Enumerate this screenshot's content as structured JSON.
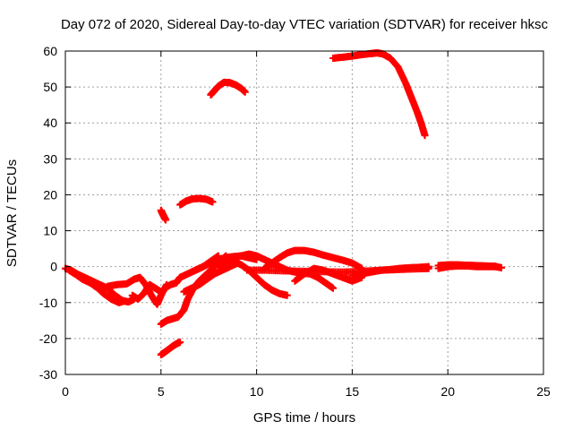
{
  "chart_data": {
    "type": "scatter",
    "title": "Day 072 of 2020, Sidereal Day-to-day VTEC variation (SDTVAR) for receiver hksc",
    "xlabel": "GPS time / hours",
    "ylabel": "SDTVAR / TECUs",
    "xlim": [
      0,
      25
    ],
    "ylim": [
      -30,
      60
    ],
    "xticks": [
      0,
      5,
      10,
      15,
      20,
      25
    ],
    "yticks": [
      -30,
      -20,
      -10,
      0,
      10,
      20,
      30,
      40,
      50,
      60
    ],
    "grid": true,
    "marker": "+",
    "series_color": "#ff0000",
    "series": [
      {
        "name": "seg-high-arc",
        "x": [
          14.0,
          14.5,
          15.0,
          15.5,
          16.0,
          16.3,
          16.6,
          17.0,
          17.4,
          17.8,
          18.1,
          18.4,
          18.6,
          18.8
        ],
        "y": [
          58.0,
          58.3,
          58.6,
          59.0,
          59.3,
          59.5,
          59.2,
          58.0,
          55.5,
          51.0,
          47.0,
          43.0,
          40.0,
          36.5
        ]
      },
      {
        "name": "seg-50",
        "x": [
          7.6,
          7.8,
          8.0,
          8.3,
          8.6,
          8.9,
          9.2,
          9.4
        ],
        "y": [
          47.8,
          49.0,
          50.2,
          51.3,
          51.2,
          50.6,
          49.6,
          48.6
        ]
      },
      {
        "name": "seg-18",
        "x": [
          6.0,
          6.3,
          6.6,
          7.0,
          7.4,
          7.7
        ],
        "y": [
          17.2,
          18.2,
          18.8,
          19.0,
          18.7,
          18.0
        ]
      },
      {
        "name": "seg-15",
        "x": [
          5.0,
          5.1,
          5.25
        ],
        "y": [
          15.7,
          14.5,
          13.0
        ]
      },
      {
        "name": "seg-minus-22",
        "x": [
          5.0,
          5.2,
          5.4,
          5.6,
          5.8,
          6.0
        ],
        "y": [
          -24.5,
          -23.8,
          -23.0,
          -22.2,
          -21.5,
          -21.0
        ]
      },
      {
        "name": "seg-rise",
        "x": [
          5.0,
          5.3,
          5.6,
          5.9,
          6.2,
          6.4,
          6.7,
          7.0,
          7.3,
          7.6,
          8.0,
          8.4
        ],
        "y": [
          -16.0,
          -15.0,
          -14.5,
          -14.0,
          -12.0,
          -9.0,
          -6.0,
          -4.0,
          -2.5,
          -1.0,
          1.0,
          3.0
        ]
      },
      {
        "name": "seg-early",
        "x": [
          0.0,
          0.3,
          0.6,
          1.0,
          1.4,
          1.8,
          2.2,
          2.6,
          3.0,
          3.3,
          3.6
        ],
        "y": [
          -0.5,
          -1.0,
          -2.0,
          -3.0,
          -4.0,
          -5.0,
          -6.0,
          -8.0,
          -9.5,
          -9.8,
          -9.0
        ]
      },
      {
        "name": "seg-early-b",
        "x": [
          0.2,
          0.5,
          0.9,
          1.3,
          1.7,
          2.0,
          2.4,
          2.8,
          3.1
        ],
        "y": [
          -1.0,
          -2.0,
          -3.5,
          -4.5,
          -6.0,
          -7.5,
          -9.0,
          -10.0,
          -9.5
        ]
      },
      {
        "name": "seg-wiggle",
        "x": [
          2.2,
          2.7,
          3.2,
          3.6,
          3.9,
          4.2,
          4.5,
          4.8,
          5.0,
          5.3
        ],
        "y": [
          -5.5,
          -5.0,
          -4.8,
          -3.5,
          -3.0,
          -5.0,
          -8.0,
          -10.5,
          -8.0,
          -5.0
        ]
      },
      {
        "name": "seg-wiggle-b",
        "x": [
          3.5,
          3.8,
          4.1,
          4.4,
          4.7,
          5.0
        ],
        "y": [
          -8.0,
          -9.0,
          -7.5,
          -5.0,
          -6.0,
          -7.0
        ]
      },
      {
        "name": "seg-mid-a",
        "x": [
          5.2,
          5.5,
          5.8,
          6.0,
          6.4,
          6.8,
          7.2,
          7.6,
          8.0
        ],
        "y": [
          -6.0,
          -5.0,
          -4.5,
          -3.0,
          -2.0,
          -1.0,
          0.0,
          1.5,
          3.0
        ]
      },
      {
        "name": "seg-mid-b",
        "x": [
          6.2,
          6.6,
          7.0,
          7.4,
          7.8,
          8.2,
          8.6,
          9.0
        ],
        "y": [
          -7.0,
          -6.0,
          -5.0,
          -3.5,
          -2.0,
          -1.0,
          0.0,
          1.0
        ]
      },
      {
        "name": "seg-mid-c",
        "x": [
          6.8,
          7.2,
          7.6,
          8.0,
          8.4,
          8.8,
          9.2,
          9.6,
          10.0
        ],
        "y": [
          -1.0,
          0.0,
          1.0,
          2.0,
          2.5,
          2.8,
          3.0,
          2.5,
          2.0
        ]
      },
      {
        "name": "seg-mid-d",
        "x": [
          8.0,
          8.4,
          8.8,
          9.2,
          9.6,
          10.0,
          10.4,
          10.8,
          11.2,
          11.6
        ],
        "y": [
          0.5,
          1.0,
          1.5,
          0.5,
          -1.0,
          -3.0,
          -5.0,
          -6.5,
          -7.5,
          -8.0
        ]
      },
      {
        "name": "seg-mid-e",
        "x": [
          8.8,
          9.2,
          9.6,
          10.0,
          10.4,
          10.8,
          11.2,
          11.6,
          12.0,
          12.4,
          12.8,
          13.2,
          13.6,
          14.0
        ],
        "y": [
          2.5,
          3.0,
          3.5,
          3.0,
          2.0,
          1.0,
          0.0,
          -1.0,
          -1.5,
          -1.8,
          -2.0,
          -3.0,
          -4.5,
          -6.0
        ]
      },
      {
        "name": "seg-hump",
        "x": [
          10.4,
          10.8,
          11.2,
          11.6,
          12.0,
          12.5,
          13.0,
          13.5,
          14.0,
          14.5,
          15.0,
          15.5
        ],
        "y": [
          -0.5,
          1.0,
          2.5,
          3.8,
          4.5,
          4.5,
          4.0,
          3.2,
          2.5,
          1.8,
          1.0,
          -0.5
        ]
      },
      {
        "name": "seg-flat",
        "x": [
          9.5,
          10.5,
          11.5,
          12.5,
          13.5,
          14.5,
          15.5,
          16.5,
          17.5,
          18.5,
          19.0
        ],
        "y": [
          -1.0,
          -1.0,
          -1.2,
          -1.3,
          -1.4,
          -1.5,
          -1.3,
          -1.0,
          -0.8,
          -0.6,
          -0.5
        ]
      },
      {
        "name": "seg-lower",
        "x": [
          12.0,
          12.5,
          13.0,
          13.5,
          14.0,
          14.5,
          15.0,
          15.5
        ],
        "y": [
          -4.0,
          -2.0,
          -0.5,
          -1.0,
          -2.0,
          -3.0,
          -4.0,
          -3.0
        ]
      },
      {
        "name": "seg-tail",
        "x": [
          15.0,
          15.5,
          16.0,
          16.5,
          17.0,
          17.5,
          18.0,
          18.5,
          19.0
        ],
        "y": [
          -2.5,
          -2.0,
          -1.5,
          -1.0,
          -0.8,
          -0.5,
          -0.3,
          -0.2,
          0.0
        ]
      },
      {
        "name": "seg-late",
        "x": [
          19.5,
          20.0,
          20.5,
          21.0,
          21.5,
          22.0,
          22.5,
          22.8
        ],
        "y": [
          -0.5,
          0.0,
          0.2,
          0.2,
          0.0,
          0.0,
          0.0,
          -0.3
        ]
      },
      {
        "name": "seg-late-b",
        "x": [
          19.5,
          20.0,
          20.5,
          21.0,
          21.5,
          22.0,
          22.5
        ],
        "y": [
          0.3,
          0.5,
          0.5,
          0.4,
          0.3,
          0.2,
          0.1
        ]
      }
    ]
  }
}
